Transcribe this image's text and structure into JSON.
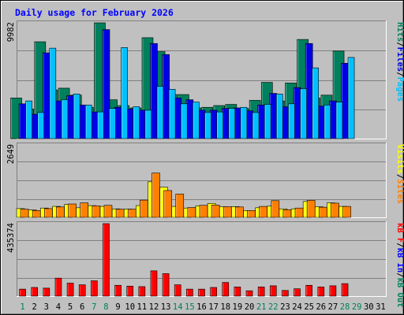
{
  "title": "Daily usage for February 2026",
  "days": [
    "1",
    "2",
    "3",
    "4",
    "5",
    "6",
    "7",
    "8",
    "9",
    "10",
    "11",
    "12",
    "13",
    "14",
    "15",
    "16",
    "17",
    "18",
    "19",
    "20",
    "21",
    "22",
    "23",
    "24",
    "25",
    "26",
    "27",
    "28",
    "29",
    "30",
    "31"
  ],
  "weekend_days": [
    1,
    7,
    8,
    14,
    15,
    21,
    22,
    28,
    29
  ],
  "colors": {
    "background": "#c0c0c0",
    "panel": "#c0c0c0",
    "gridline": "#808080",
    "hits": "#00805c",
    "files": "#0000e6",
    "pages": "#00c0ff",
    "visits": "#ffff00",
    "sites": "#ff8000",
    "kb_f": "#ff0000",
    "kb_in": "#0000ff",
    "kb_out": "#00805c",
    "title": "#0000ff",
    "weekday_label": "#000000",
    "weekend_label": "#00805c"
  },
  "chart_data": [
    {
      "type": "bar",
      "name": "hits-files-pages",
      "ylim": [
        0,
        9982
      ],
      "y_max_label": "9982",
      "legend": [
        {
          "label": "Hits",
          "color": "#00805c"
        },
        {
          "label": "Files",
          "color": "#0000e6"
        },
        {
          "label": "Pages",
          "color": "#00c0ff"
        }
      ],
      "legend_separator": "/",
      "series": [
        {
          "name": "Hits",
          "values": [
            3500,
            2550,
            8350,
            4200,
            4350,
            3750,
            2700,
            9982,
            3350,
            2850,
            2650,
            8700,
            7500,
            3800,
            3800,
            2650,
            2700,
            2850,
            2950,
            2600,
            3300,
            4850,
            3250,
            4800,
            8550,
            3500,
            3750,
            7550
          ]
        },
        {
          "name": "Files",
          "values": [
            3000,
            2100,
            7400,
            3250,
            3700,
            2900,
            2300,
            9400,
            2700,
            2550,
            2450,
            8200,
            7250,
            3500,
            3350,
            2450,
            2450,
            2600,
            2650,
            2400,
            2900,
            3900,
            2750,
            4400,
            8200,
            2800,
            3250,
            6500
          ]
        },
        {
          "name": "Pages",
          "values": [
            3250,
            2250,
            7800,
            3350,
            3850,
            2900,
            2300,
            2600,
            7850,
            2750,
            2450,
            4500,
            4250,
            3000,
            3150,
            2250,
            2300,
            2600,
            2700,
            2250,
            2950,
            3850,
            3000,
            4300,
            6100,
            2900,
            3150,
            7000
          ]
        }
      ]
    },
    {
      "type": "bar",
      "name": "sites-visits",
      "ylim": [
        0,
        2649
      ],
      "y_max_label": "2649",
      "legend": [
        {
          "label": "Visits",
          "color": "#ffff00"
        },
        {
          "label": "Sites",
          "color": "#ff8000"
        }
      ],
      "legend_separator": "/",
      "series": [
        {
          "name": "Visits",
          "values": [
            320,
            270,
            340,
            400,
            470,
            350,
            430,
            400,
            310,
            300,
            430,
            1300,
            1100,
            400,
            340,
            420,
            510,
            390,
            390,
            250,
            350,
            410,
            310,
            310,
            580,
            390,
            530,
            400
          ]
        },
        {
          "name": "Sites",
          "values": [
            300,
            250,
            320,
            380,
            490,
            530,
            420,
            440,
            300,
            300,
            630,
            1620,
            980,
            850,
            360,
            440,
            450,
            390,
            380,
            250,
            400,
            610,
            280,
            340,
            620,
            370,
            520,
            400
          ]
        }
      ]
    },
    {
      "type": "bar",
      "name": "kbytes",
      "ylim": [
        0,
        435374
      ],
      "y_max_label": "435374",
      "legend": [
        {
          "label": "kB F",
          "color": "#ff0000"
        },
        {
          "label": "kB In",
          "color": "#0000ff"
        },
        {
          "label": "kB Out",
          "color": "#00805c"
        }
      ],
      "legend_separator": "/",
      "series": [
        {
          "name": "kB F",
          "values": [
            42000,
            52000,
            48000,
            108000,
            78000,
            68000,
            92000,
            435374,
            65000,
            60000,
            57000,
            152000,
            135000,
            68000,
            42000,
            42000,
            52000,
            82000,
            55000,
            32000,
            55000,
            62000,
            34000,
            44000,
            65000,
            55000,
            62000,
            75000
          ]
        }
      ]
    }
  ]
}
